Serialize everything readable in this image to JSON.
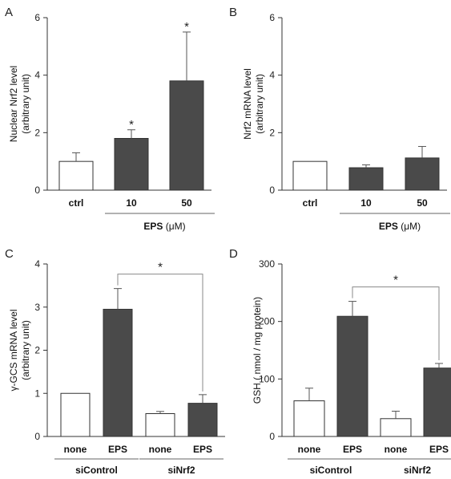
{
  "colors": {
    "filled_bar": "#4a4a4a",
    "open_bar": "#ffffff",
    "axis": "#333333",
    "bracket": "#8a8a8a"
  },
  "chart_data": [
    {
      "panel": "A",
      "type": "bar",
      "categories": [
        "ctrl",
        "10",
        "50"
      ],
      "values": [
        1.0,
        1.8,
        3.8
      ],
      "errors": [
        0.3,
        0.3,
        1.7
      ],
      "fills": [
        "open",
        "filled",
        "filled"
      ],
      "significant": [
        false,
        true,
        true
      ],
      "ylabel_lines": [
        "Nuclear Nrf2 level",
        "(arbitrary unit)"
      ],
      "ylim": [
        0,
        6
      ],
      "yticks": [
        0,
        2,
        4,
        6
      ],
      "group_label_prefix": "EPS",
      "group_label_unit": "(μM)",
      "group_span": [
        1,
        2
      ]
    },
    {
      "panel": "B",
      "type": "bar",
      "categories": [
        "ctrl",
        "10",
        "50"
      ],
      "values": [
        1.0,
        0.78,
        1.12
      ],
      "errors": [
        0.0,
        0.1,
        0.4
      ],
      "fills": [
        "open",
        "filled",
        "filled"
      ],
      "significant": [
        false,
        false,
        false
      ],
      "ylabel_lines": [
        "Nrf2 mRNA level",
        "(arbitrary unit)"
      ],
      "ylim": [
        0,
        6
      ],
      "yticks": [
        0,
        2,
        4,
        6
      ],
      "group_label_prefix": "EPS",
      "group_label_unit": "(μM)",
      "group_span": [
        1,
        2
      ]
    },
    {
      "panel": "C",
      "type": "bar",
      "categories": [
        "none",
        "EPS",
        "none",
        "EPS"
      ],
      "values": [
        1.0,
        2.95,
        0.53,
        0.77
      ],
      "errors": [
        0.0,
        0.48,
        0.05,
        0.2
      ],
      "fills": [
        "open",
        "filled",
        "open",
        "filled"
      ],
      "ylabel_lines": [
        "γ-GCS mRNA level",
        "(arbitrary unit)"
      ],
      "ylim": [
        0,
        4
      ],
      "yticks": [
        0,
        1,
        2,
        3,
        4
      ],
      "groups": [
        {
          "label": "siControl",
          "span": [
            0,
            1
          ]
        },
        {
          "label": "siNrf2",
          "span": [
            2,
            3
          ]
        }
      ],
      "comparison": {
        "from": 1,
        "to": 3,
        "label": "*"
      }
    },
    {
      "panel": "D",
      "type": "bar",
      "categories": [
        "none",
        "EPS",
        "none",
        "EPS"
      ],
      "values": [
        62,
        209,
        31,
        119
      ],
      "errors": [
        22,
        26,
        13,
        8
      ],
      "fills": [
        "open",
        "filled",
        "open",
        "filled"
      ],
      "ylabel_lines": [
        "GSH ( nmol / mg protein)"
      ],
      "ylim": [
        0,
        300
      ],
      "yticks": [
        0,
        100,
        200,
        300
      ],
      "groups": [
        {
          "label": "siControl",
          "span": [
            0,
            1
          ]
        },
        {
          "label": "siNrf2",
          "span": [
            2,
            3
          ]
        }
      ],
      "comparison": {
        "from": 1,
        "to": 3,
        "label": "*"
      }
    }
  ]
}
